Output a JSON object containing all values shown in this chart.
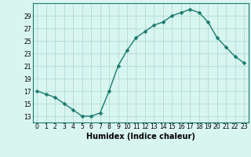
{
  "x": [
    0,
    1,
    2,
    3,
    4,
    5,
    6,
    7,
    8,
    9,
    10,
    11,
    12,
    13,
    14,
    15,
    16,
    17,
    18,
    19,
    20,
    21,
    22,
    23
  ],
  "y": [
    17,
    16.5,
    16,
    15,
    14,
    13,
    13,
    13.5,
    17,
    21,
    23.5,
    25.5,
    26.5,
    27.5,
    28,
    29,
    29.5,
    30,
    29.5,
    28,
    25.5,
    24,
    22.5,
    21.5
  ],
  "line_color": "#1a7a6e",
  "marker": "D",
  "marker_size": 2.5,
  "bg_color": "#d9f5f0",
  "grid_color": "#b0ddd8",
  "xlabel": "Humidex (Indice chaleur)",
  "xlim": [
    -0.5,
    23.5
  ],
  "ylim": [
    12,
    31
  ],
  "yticks": [
    13,
    15,
    17,
    19,
    21,
    23,
    25,
    27,
    29
  ],
  "xticks": [
    0,
    1,
    2,
    3,
    4,
    5,
    6,
    7,
    8,
    9,
    10,
    11,
    12,
    13,
    14,
    15,
    16,
    17,
    18,
    19,
    20,
    21,
    22,
    23
  ],
  "tick_fontsize": 5.5,
  "xlabel_fontsize": 7.0,
  "line_width": 1.0
}
